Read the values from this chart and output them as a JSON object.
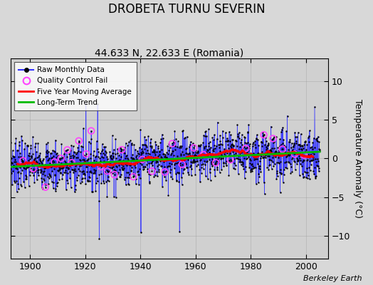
{
  "title": "DROBETA TURNU SEVERIN",
  "subtitle": "44.633 N, 22.633 E (Romania)",
  "ylabel": "Temperature Anomaly (°C)",
  "xlabel_credit": "Berkeley Earth",
  "ylim": [
    -13,
    13
  ],
  "yticks": [
    -10,
    -5,
    0,
    5,
    10
  ],
  "xlim": [
    1893,
    2008
  ],
  "xticks": [
    1900,
    1920,
    1940,
    1960,
    1980,
    2000
  ],
  "start_year": 1893,
  "end_year": 2005,
  "bg_color": "#d8d8d8",
  "plot_bg_color": "#d0d0d0",
  "raw_line_color": "#3333ff",
  "raw_dot_color": "#000000",
  "qc_fail_color": "#ff44ff",
  "moving_avg_color": "#ff0000",
  "trend_color": "#00bb00",
  "legend_labels": [
    "Raw Monthly Data",
    "Quality Control Fail",
    "Five Year Moving Average",
    "Long-Term Trend"
  ],
  "title_fontsize": 12,
  "subtitle_fontsize": 10,
  "ylabel_fontsize": 9,
  "credit_fontsize": 8,
  "tick_labelsize": 9
}
